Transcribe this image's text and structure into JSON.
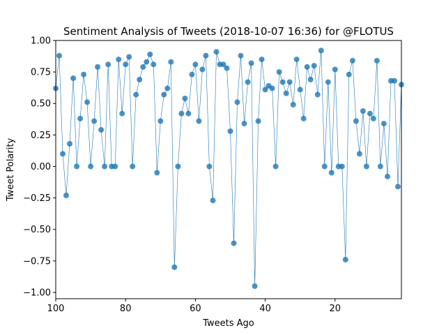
{
  "chart_data": {
    "type": "line",
    "title": "Sentiment Analysis of Tweets (2018-10-07 16:36) for @FLOTUS",
    "xlabel": "Tweets Ago",
    "ylabel": "Tweet Polarity",
    "xlim": [
      100,
      1
    ],
    "ylim": [
      -1.05,
      1.0
    ],
    "x_ticks": [
      100,
      80,
      60,
      40,
      20
    ],
    "y_ticks": [
      1.0,
      0.75,
      0.5,
      0.25,
      0.0,
      -0.25,
      -0.5,
      -0.75,
      -1.0
    ],
    "x_tick_labels": [
      "100",
      "80",
      "60",
      "40",
      "20"
    ],
    "y_tick_labels": [
      "1.00",
      "0.75",
      "0.50",
      "0.25",
      "0.00",
      "−0.25",
      "−0.50",
      "−0.75",
      "−1.00"
    ],
    "grid": false,
    "legend": "none",
    "color": "#1f77b4",
    "marker": "circle",
    "series": [
      {
        "x": [
          100,
          99,
          98,
          97,
          96,
          95,
          94,
          93,
          92,
          91,
          90,
          89,
          88,
          87,
          86,
          85,
          84,
          83,
          82,
          81,
          80,
          79,
          78,
          77,
          76,
          75,
          74,
          73,
          72,
          71,
          70,
          69,
          68,
          67,
          66,
          65,
          64,
          63,
          62,
          61,
          60,
          59,
          58,
          57,
          56,
          55,
          54,
          53,
          52,
          51,
          50,
          49,
          48,
          47,
          46,
          45,
          44,
          43,
          42,
          41,
          40,
          39,
          38,
          37,
          36,
          35,
          34,
          33,
          32,
          31,
          30,
          29,
          28,
          27,
          26,
          25,
          24,
          23,
          22,
          21,
          20,
          19,
          18,
          17,
          16,
          15,
          14,
          13,
          12,
          11,
          10,
          9,
          8,
          7,
          6,
          5,
          4,
          3,
          2,
          1
        ],
        "values": [
          0.62,
          0.88,
          0.1,
          -0.23,
          0.18,
          0.7,
          0.0,
          0.38,
          0.73,
          0.51,
          0.0,
          0.36,
          0.79,
          0.29,
          0.0,
          0.81,
          0.0,
          0.0,
          0.85,
          0.42,
          0.81,
          0.87,
          0.0,
          0.57,
          0.69,
          0.79,
          0.83,
          0.89,
          0.81,
          -0.05,
          0.36,
          0.57,
          0.62,
          0.83,
          -0.8,
          0.0,
          0.42,
          0.54,
          0.42,
          0.73,
          0.81,
          0.36,
          0.77,
          0.88,
          0.0,
          -0.27,
          0.91,
          0.81,
          0.81,
          0.78,
          0.28,
          -0.61,
          0.51,
          0.88,
          0.34,
          0.67,
          0.82,
          -0.95,
          0.36,
          0.85,
          0.61,
          0.64,
          0.62,
          0.0,
          0.75,
          0.67,
          0.58,
          0.67,
          0.49,
          0.85,
          0.61,
          0.38,
          0.79,
          0.69,
          0.8,
          0.57,
          0.92,
          0.0,
          0.67,
          -0.05,
          0.77,
          0.0,
          0.0,
          -0.74,
          0.73,
          0.84,
          0.36,
          0.1,
          0.44,
          0.0,
          0.42,
          0.38,
          0.84,
          0.0,
          0.34,
          -0.08,
          0.68,
          0.68,
          -0.16,
          0.65
        ]
      }
    ]
  }
}
